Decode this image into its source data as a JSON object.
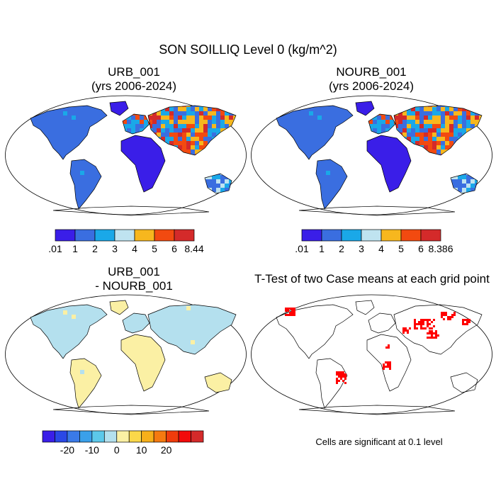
{
  "title": "SON SOILLIQ Level 0 (kg/m^2)",
  "panels": [
    {
      "title_line1": "URB_001",
      "title_line2": "(yrs 2006-2024)"
    },
    {
      "title_line1": "NOURB_001",
      "title_line2": "(yrs 2006-2024)"
    },
    {
      "title_line1": "URB_001",
      "title_line2": "- NOURB_001"
    },
    {
      "title_line1": "T-Test of two Case means at each grid point",
      "title_line2": ""
    }
  ],
  "colorbars": [
    {
      "colors": [
        "#3a1ee8",
        "#3a6ee0",
        "#1aa8e8",
        "#bfe3f0",
        "#f7b71e",
        "#f24a10",
        "#d42a2a"
      ],
      "labels": [
        ".01",
        "1",
        "2",
        "3",
        "4",
        "5",
        "6",
        "8.44"
      ]
    },
    {
      "colors": [
        "#3a1ee8",
        "#3a6ee0",
        "#1aa8e8",
        "#bfe3f0",
        "#f7b71e",
        "#f24a10",
        "#d42a2a"
      ],
      "labels": [
        ".01",
        "1",
        "2",
        "3",
        "4",
        "5",
        "6",
        "8.386"
      ]
    },
    {
      "colors": [
        "#3a1ee8",
        "#2a48e6",
        "#3a7ae8",
        "#3aa0ea",
        "#5cc8ea",
        "#b4e0ee",
        "#fbf0a4",
        "#fbd84a",
        "#f7b01a",
        "#f57a10",
        "#f03c0c",
        "#f20a0a",
        "#d42a2a"
      ],
      "labels": [
        "-20",
        "-10",
        "0",
        "10",
        "20"
      ]
    }
  ],
  "significance_note": "Cells are significant at 0.1 level",
  "colors": {
    "ocean": "#ffffff",
    "outline": "#000000",
    "significant": "#ff0000"
  }
}
